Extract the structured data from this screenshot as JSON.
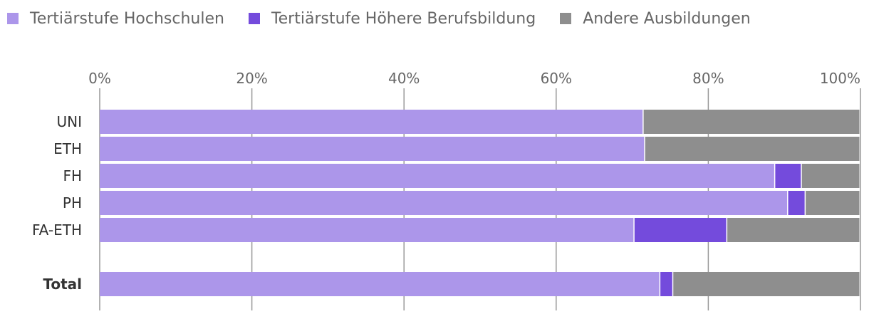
{
  "chart_data": {
    "type": "bar",
    "orientation": "horizontal",
    "stacked": true,
    "categories": [
      "UNI",
      "ETH",
      "FH",
      "PH",
      "FA-ETH",
      "Total"
    ],
    "series": [
      {
        "name": "Tertiärstufe Hochschulen",
        "color": "#ac96ea",
        "values": [
          71.5,
          71.7,
          88.8,
          90.5,
          70.3,
          73.7
        ]
      },
      {
        "name": "Tertiärstufe Höhere Berufsbildung",
        "color": "#744bdc",
        "values": [
          0,
          0,
          3.5,
          2.3,
          12.2,
          1.7
        ]
      },
      {
        "name": "Andere Ausbildungen",
        "color": "#8e8e8e",
        "values": [
          28.5,
          28.3,
          7.7,
          7.2,
          17.5,
          24.6
        ]
      }
    ],
    "xlim": [
      0,
      100
    ],
    "xticks": [
      "0%",
      "20%",
      "40%",
      "60%",
      "80%",
      "100%"
    ],
    "tick_values": [
      0,
      20,
      40,
      60,
      80,
      100
    ],
    "bold_categories": [
      "Total"
    ],
    "legend_position": "top-left",
    "grid": true,
    "title": "",
    "xlabel": "",
    "ylabel": ""
  }
}
